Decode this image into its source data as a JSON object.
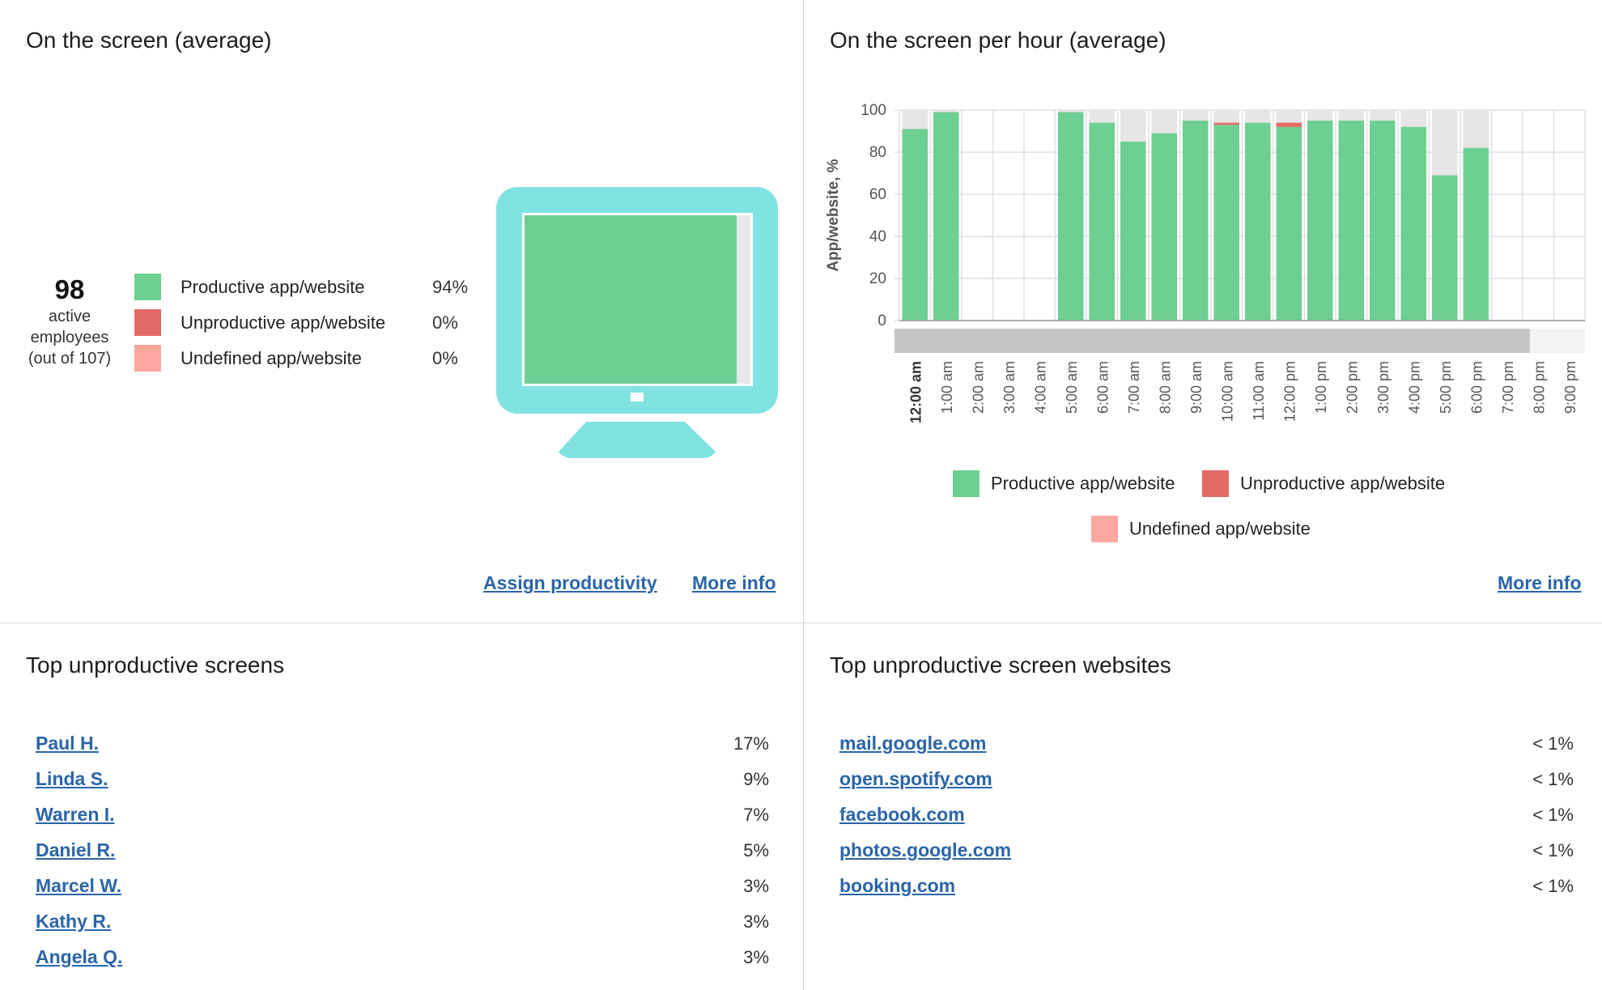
{
  "screen_panel": {
    "title": "On the screen (average)",
    "active_count": "98",
    "active_label_1": "active",
    "active_label_2": "employees",
    "active_label_3": "(out of 107)",
    "legend": [
      {
        "label": "Productive app/website",
        "value": "94%",
        "color": "#6dcf92"
      },
      {
        "label": "Unproductive app/website",
        "value": "0%",
        "color": "#e36b66"
      },
      {
        "label": "Undefined app/website",
        "value": "0%",
        "color": "#fba7a0"
      }
    ],
    "monitor_fill": 0.94,
    "monitor_color": "#80e3e2",
    "assign_link": "Assign productivity",
    "more_info_link": "More info"
  },
  "hourly_panel": {
    "title": "On the screen per hour (average)",
    "more_info_link": "More info",
    "legend": [
      {
        "label": "Productive app/website",
        "color": "#6dcf92"
      },
      {
        "label": "Unproductive app/website",
        "color": "#e36b66"
      },
      {
        "label": "Undefined app/website",
        "color": "#fba7a0"
      }
    ]
  },
  "chart_data": {
    "type": "bar",
    "ylabel": "App/website, %",
    "ylim": [
      0,
      100
    ],
    "yticks": [
      0,
      20,
      40,
      60,
      80,
      100
    ],
    "grid": true,
    "legend_placement": "bottom",
    "categories": [
      "12:00 am",
      "1:00 am",
      "2:00 am",
      "3:00 am",
      "4:00 am",
      "5:00 am",
      "6:00 am",
      "7:00 am",
      "8:00 am",
      "9:00 am",
      "10:00 am",
      "11:00 am",
      "12:00 pm",
      "1:00 pm",
      "2:00 pm",
      "3:00 pm",
      "4:00 pm",
      "5:00 pm",
      "6:00 pm",
      "7:00 pm",
      "8:00 pm",
      "9:00 pm"
    ],
    "series": [
      {
        "name": "Productive app/website",
        "values": [
          91,
          99,
          0,
          0,
          0,
          99,
          94,
          85,
          89,
          95,
          93,
          94,
          92,
          95,
          95,
          95,
          92,
          69,
          82,
          0,
          0,
          0
        ]
      },
      {
        "name": "Unproductive app/website",
        "values": [
          0,
          0,
          0,
          0,
          0,
          0,
          0,
          0,
          0,
          0,
          1,
          0,
          2,
          0,
          0,
          0,
          0,
          0,
          0,
          0,
          0,
          0
        ]
      },
      {
        "name": "Undefined app/website",
        "values": [
          0,
          0,
          0,
          0,
          0,
          0,
          0,
          0,
          0,
          0,
          0,
          0,
          0,
          0,
          0,
          0,
          0,
          0,
          0,
          0,
          0,
          0
        ]
      }
    ],
    "active_hours": [
      true,
      true,
      false,
      false,
      false,
      true,
      true,
      true,
      true,
      true,
      true,
      true,
      true,
      true,
      true,
      true,
      true,
      true,
      true,
      false,
      false,
      false
    ],
    "bold_category": "12:00 am",
    "scrollbar_fill": 0.92
  },
  "top_screens": {
    "title": "Top unproductive screens",
    "items": [
      {
        "name": "Paul H.",
        "value": "17%"
      },
      {
        "name": "Linda S.",
        "value": "9%"
      },
      {
        "name": "Warren I.",
        "value": "7%"
      },
      {
        "name": "Daniel R.",
        "value": "5%"
      },
      {
        "name": "Marcel W.",
        "value": "3%"
      },
      {
        "name": "Kathy R.",
        "value": "3%"
      },
      {
        "name": "Angela Q.",
        "value": "3%"
      }
    ]
  },
  "top_sites": {
    "title": "Top unproductive screen websites",
    "items": [
      {
        "name": "mail.google.com",
        "value": "< 1%"
      },
      {
        "name": "open.spotify.com",
        "value": "< 1%"
      },
      {
        "name": "facebook.com",
        "value": "< 1%"
      },
      {
        "name": "photos.google.com",
        "value": "< 1%"
      },
      {
        "name": "booking.com",
        "value": "< 1%"
      }
    ]
  }
}
